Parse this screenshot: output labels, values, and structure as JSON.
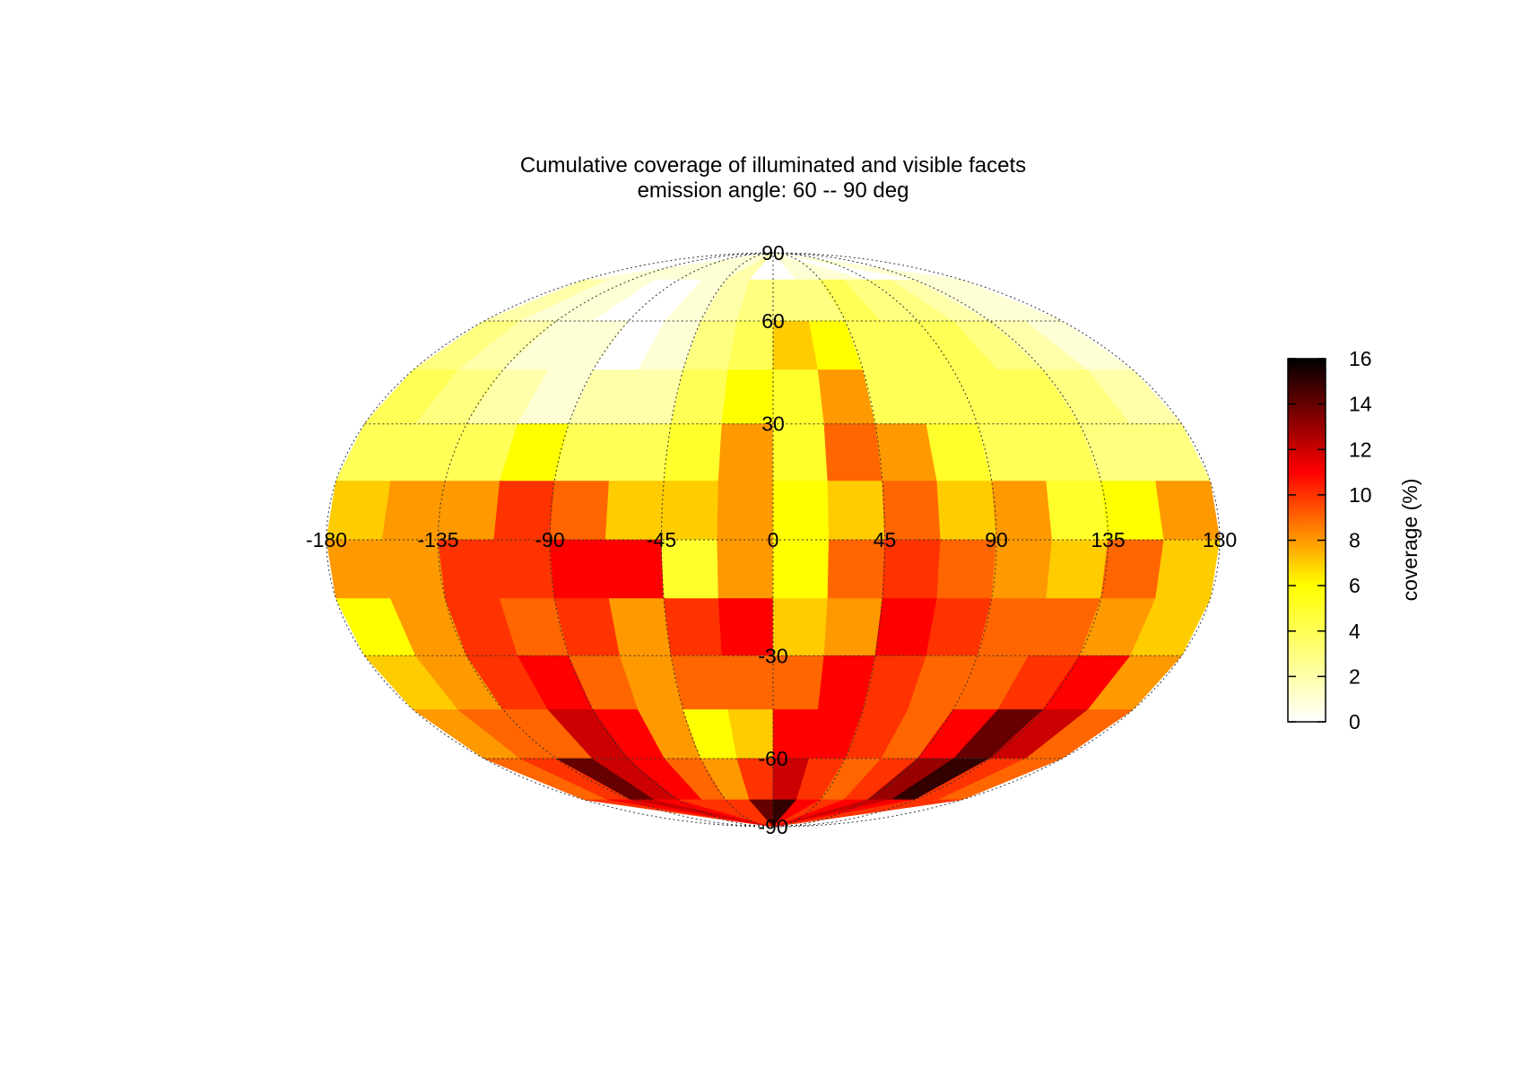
{
  "chart_data": {
    "type": "heatmap",
    "projection": "mollweide",
    "title": "Cumulative coverage of illuminated and visible facets",
    "subtitle": "emission angle: 60 -- 90 deg",
    "colorbar": {
      "label": "coverage (%)",
      "range": [
        0,
        16
      ],
      "ticks": [
        "0",
        "2",
        "4",
        "6",
        "8",
        "10",
        "12",
        "14",
        "16"
      ],
      "colormap": "hot (white-yellow-red-black)"
    },
    "lon_ticks": [
      "-180",
      "-135",
      "-90",
      "-45",
      "0",
      "45",
      "90",
      "135",
      "180"
    ],
    "lat_ticks": [
      "90",
      "60",
      "30",
      "-30",
      "-60",
      "-90"
    ],
    "grid": true,
    "lon_step_deg": 22.5,
    "lat_step_deg": 15,
    "lat_bands_north_to_south": [
      "75..90",
      "60..75",
      "45..60",
      "30..45",
      "15..30",
      "0..15",
      "-15..0",
      "-30..-15",
      "-45..-30",
      "-60..-45",
      "-75..-60",
      "-90..-75"
    ],
    "lon_bins_west_to_east": [
      "-180..-157.5",
      "-157.5..-135",
      "-135..-112.5",
      "-112.5..-90",
      "-90..-67.5",
      "-67.5..-45",
      "-45..-22.5",
      "-22.5..0",
      "0..22.5",
      "22.5..45",
      "45..67.5",
      "67.5..90",
      "90..112.5",
      "112.5..135",
      "135..157.5",
      "157.5..180"
    ],
    "values": [
      [
        1,
        1,
        1,
        1,
        1,
        1,
        2,
        0,
        0,
        1,
        1,
        1,
        0,
        0,
        1,
        1
      ],
      [
        2,
        1,
        1,
        0,
        0,
        1,
        2,
        3,
        3,
        3,
        4,
        3,
        3,
        2,
        1,
        1
      ],
      [
        3,
        2,
        1,
        1,
        0,
        1,
        3,
        4,
        7,
        6,
        4,
        4,
        4,
        3,
        2,
        1
      ],
      [
        4,
        3,
        2,
        1,
        2,
        2,
        4,
        6,
        5,
        8,
        4,
        4,
        4,
        4,
        3,
        2
      ],
      [
        4,
        4,
        4,
        6,
        4,
        4,
        5,
        8,
        5,
        9,
        8,
        5,
        4,
        4,
        3,
        3
      ],
      [
        7,
        8,
        8,
        10,
        9,
        7,
        7,
        8,
        6,
        7,
        9,
        7,
        8,
        5,
        6,
        8
      ],
      [
        8,
        8,
        10,
        10,
        11,
        11,
        5,
        8,
        6,
        9,
        10,
        9,
        8,
        7,
        9,
        7
      ],
      [
        6,
        8,
        10,
        9,
        10,
        8,
        10,
        11,
        7,
        8,
        11,
        10,
        9,
        9,
        8,
        7
      ],
      [
        7,
        8,
        10,
        11,
        9,
        8,
        9,
        9,
        9,
        11,
        10,
        9,
        9,
        10,
        11,
        8
      ],
      [
        8,
        9,
        9,
        12,
        11,
        8,
        6,
        7,
        11,
        11,
        10,
        9,
        11,
        14,
        12,
        9
      ],
      [
        9,
        10,
        14,
        12,
        11,
        9,
        8,
        10,
        12,
        10,
        9,
        10,
        13,
        15,
        10,
        9
      ],
      [
        10,
        11,
        12,
        11,
        10,
        10,
        10,
        14,
        15,
        11,
        10,
        11,
        12,
        11,
        10,
        10
      ]
    ]
  }
}
